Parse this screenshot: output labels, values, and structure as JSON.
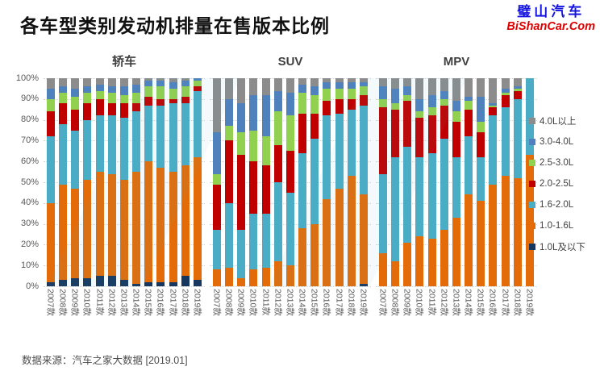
{
  "header": {
    "title": "各车型类别发动机排量在售版本比例",
    "logo": {
      "line1": "璧山汽车",
      "line2": "BiShanCar.Com",
      "line1_color": "#1414E0",
      "line2_color": "#E00000"
    }
  },
  "source_note": "数据来源：汽车之家大数据 [2019.01]",
  "y_axis": {
    "ticks": [
      "100%",
      "90%",
      "80%",
      "70%",
      "60%",
      "50%",
      "40%",
      "30%",
      "20%",
      "10%",
      "0%"
    ]
  },
  "legend": {
    "position": "right",
    "items": [
      {
        "label": "4.0L以上",
        "color": "#8C8C8C"
      },
      {
        "label": "3.0-4.0L",
        "color": "#4F81BD"
      },
      {
        "label": "2.5-3.0L",
        "color": "#92D050"
      },
      {
        "label": "2.0-2.5L",
        "color": "#C00000"
      },
      {
        "label": "1.6-2.0L",
        "color": "#4BACC6"
      },
      {
        "label": "1.0-1.6L",
        "color": "#E36C09"
      },
      {
        "label": "1.0L及以下",
        "color": "#17375E"
      }
    ]
  },
  "chart_data": [
    {
      "type": "bar",
      "stacked": true,
      "title": "轿车",
      "ylim": [
        0,
        100
      ],
      "grid": true,
      "legend_position": "right",
      "categories": [
        "2007款",
        "2008款",
        "2009款",
        "2010款",
        "2011款",
        "2012款",
        "2013款",
        "2014款",
        "2015款",
        "2016款",
        "2017款",
        "2018款",
        "2019款"
      ],
      "series": [
        {
          "name": "1.0L及以下",
          "color": "#17375E",
          "values": [
            2,
            3,
            4,
            4,
            5,
            5,
            3,
            1,
            2,
            2,
            2,
            5,
            3
          ]
        },
        {
          "name": "1.0-1.6L",
          "color": "#E36C09",
          "values": [
            38,
            46,
            43,
            47,
            50,
            49,
            48,
            54,
            58,
            55,
            53,
            53,
            59
          ]
        },
        {
          "name": "1.6-2.0L",
          "color": "#4BACC6",
          "values": [
            32,
            29,
            28,
            29,
            27,
            28,
            30,
            29,
            27,
            30,
            33,
            30,
            32
          ]
        },
        {
          "name": "2.0-2.5L",
          "color": "#C00000",
          "values": [
            12,
            10,
            10,
            8,
            8,
            6,
            7,
            4,
            4,
            3,
            2,
            3,
            2
          ]
        },
        {
          "name": "2.5-3.0L",
          "color": "#92D050",
          "values": [
            6,
            5,
            6,
            5,
            4,
            5,
            4,
            5,
            5,
            6,
            5,
            5,
            3
          ]
        },
        {
          "name": "3.0-4.0L",
          "color": "#4F81BD",
          "values": [
            5,
            3,
            4,
            3,
            3,
            3,
            4,
            4,
            3,
            3,
            3,
            3,
            1
          ]
        },
        {
          "name": "4.0L以上",
          "color": "#8C8C8C",
          "values": [
            5,
            4,
            5,
            4,
            3,
            4,
            4,
            3,
            1,
            1,
            2,
            1,
            0
          ]
        }
      ]
    },
    {
      "type": "bar",
      "stacked": true,
      "title": "SUV",
      "ylim": [
        0,
        100
      ],
      "grid": true,
      "legend_position": "right",
      "categories": [
        "2007款",
        "2008款",
        "2009款",
        "2010款",
        "2011款",
        "2012款",
        "2013款",
        "2014款",
        "2015款",
        "2016款",
        "2017款",
        "2018款",
        "2019款"
      ],
      "series": [
        {
          "name": "1.0L及以下",
          "color": "#17375E",
          "values": [
            0,
            0,
            0,
            0,
            0,
            0,
            0,
            0,
            0,
            0,
            0,
            0,
            1
          ]
        },
        {
          "name": "1.0-1.6L",
          "color": "#E36C09",
          "values": [
            8,
            9,
            4,
            8,
            9,
            12,
            10,
            28,
            30,
            42,
            47,
            53,
            43
          ]
        },
        {
          "name": "1.6-2.0L",
          "color": "#4BACC6",
          "values": [
            19,
            31,
            23,
            27,
            26,
            38,
            35,
            36,
            41,
            40,
            36,
            32,
            43
          ]
        },
        {
          "name": "2.0-2.5L",
          "color": "#C00000",
          "values": [
            22,
            30,
            36,
            25,
            23,
            18,
            20,
            19,
            12,
            7,
            7,
            5,
            5
          ]
        },
        {
          "name": "2.5-3.0L",
          "color": "#92D050",
          "values": [
            5,
            7,
            11,
            15,
            14,
            16,
            17,
            10,
            9,
            6,
            5,
            5,
            4
          ]
        },
        {
          "name": "3.0-4.0L",
          "color": "#4F81BD",
          "values": [
            20,
            13,
            14,
            17,
            20,
            10,
            11,
            4,
            4,
            3,
            3,
            3,
            2
          ]
        },
        {
          "name": "4.0L以上",
          "color": "#8C8C8C",
          "values": [
            26,
            10,
            12,
            8,
            8,
            6,
            7,
            3,
            4,
            2,
            2,
            2,
            2
          ]
        }
      ]
    },
    {
      "type": "bar",
      "stacked": true,
      "title": "MPV",
      "ylim": [
        0,
        100
      ],
      "grid": true,
      "legend_position": "right",
      "categories": [
        "2007款",
        "2008款",
        "2009款",
        "2010款",
        "2011款",
        "2012款",
        "2013款",
        "2014款",
        "2015款",
        "2016款",
        "2017款",
        "2018款",
        "2019款"
      ],
      "series": [
        {
          "name": "1.0L及以下",
          "color": "#17375E",
          "values": [
            0,
            0,
            0,
            0,
            0,
            0,
            0,
            0,
            0,
            0,
            0,
            0,
            0
          ]
        },
        {
          "name": "1.0-1.6L",
          "color": "#E36C09",
          "values": [
            16,
            12,
            21,
            24,
            23,
            27,
            33,
            44,
            41,
            49,
            53,
            52,
            63
          ]
        },
        {
          "name": "1.6-2.0L",
          "color": "#4BACC6",
          "values": [
            38,
            50,
            46,
            38,
            41,
            44,
            29,
            28,
            21,
            33,
            33,
            38,
            37
          ]
        },
        {
          "name": "2.0-2.5L",
          "color": "#C00000",
          "values": [
            32,
            23,
            22,
            19,
            18,
            16,
            17,
            13,
            12,
            4,
            6,
            4,
            0
          ]
        },
        {
          "name": "2.5-3.0L",
          "color": "#92D050",
          "values": [
            4,
            3,
            3,
            3,
            4,
            3,
            5,
            4,
            5,
            1,
            1,
            1,
            0
          ]
        },
        {
          "name": "3.0-4.0L",
          "color": "#4F81BD",
          "values": [
            6,
            7,
            4,
            6,
            6,
            4,
            5,
            2,
            12,
            1,
            2,
            1,
            0
          ]
        },
        {
          "name": "4.0L以上",
          "color": "#8C8C8C",
          "values": [
            4,
            5,
            4,
            10,
            8,
            6,
            11,
            9,
            9,
            12,
            5,
            4,
            0
          ]
        }
      ]
    }
  ]
}
